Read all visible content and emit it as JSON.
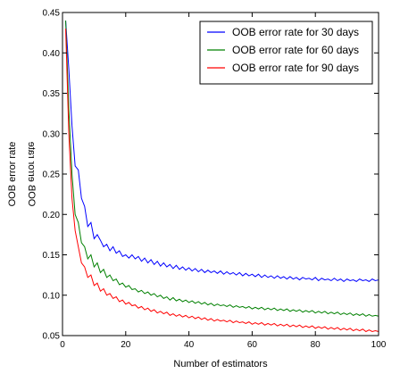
{
  "chart_data": {
    "type": "line",
    "xlabel": "Number of estimators",
    "ylabel": "OOB error rate",
    "xlim": [
      0,
      100
    ],
    "ylim": [
      0.05,
      0.45
    ],
    "xticks": [
      0,
      20,
      40,
      60,
      80,
      100
    ],
    "yticks": [
      0.05,
      0.1,
      0.15,
      0.2,
      0.25,
      0.3,
      0.35,
      0.4,
      0.45
    ],
    "legend_position": "top-right",
    "grid": false,
    "series": [
      {
        "name": "OOB error rate for 30 days",
        "color": "#0000ff",
        "x": [
          1,
          2,
          3,
          4,
          5,
          6,
          7,
          8,
          9,
          10,
          11,
          12,
          13,
          14,
          15,
          16,
          17,
          18,
          19,
          20,
          21,
          22,
          23,
          24,
          25,
          26,
          27,
          28,
          29,
          30,
          31,
          32,
          33,
          34,
          35,
          36,
          37,
          38,
          39,
          40,
          41,
          42,
          43,
          44,
          45,
          46,
          47,
          48,
          49,
          50,
          51,
          52,
          53,
          54,
          55,
          56,
          57,
          58,
          59,
          60,
          61,
          62,
          63,
          64,
          65,
          66,
          67,
          68,
          69,
          70,
          71,
          72,
          73,
          74,
          75,
          76,
          77,
          78,
          79,
          80,
          81,
          82,
          83,
          84,
          85,
          86,
          87,
          88,
          89,
          90,
          91,
          92,
          93,
          94,
          95,
          96,
          97,
          98,
          99,
          100
        ],
        "y": [
          0.44,
          0.38,
          0.31,
          0.26,
          0.255,
          0.22,
          0.21,
          0.185,
          0.19,
          0.17,
          0.175,
          0.168,
          0.16,
          0.163,
          0.155,
          0.16,
          0.152,
          0.155,
          0.148,
          0.15,
          0.146,
          0.15,
          0.145,
          0.148,
          0.142,
          0.146,
          0.14,
          0.144,
          0.138,
          0.142,
          0.136,
          0.14,
          0.135,
          0.138,
          0.133,
          0.137,
          0.132,
          0.135,
          0.131,
          0.134,
          0.13,
          0.133,
          0.129,
          0.132,
          0.128,
          0.131,
          0.128,
          0.13,
          0.127,
          0.13,
          0.126,
          0.129,
          0.126,
          0.128,
          0.125,
          0.128,
          0.124,
          0.127,
          0.124,
          0.126,
          0.123,
          0.126,
          0.122,
          0.125,
          0.122,
          0.124,
          0.121,
          0.124,
          0.121,
          0.123,
          0.12,
          0.123,
          0.12,
          0.122,
          0.119,
          0.122,
          0.12,
          0.121,
          0.119,
          0.122,
          0.118,
          0.121,
          0.119,
          0.12,
          0.118,
          0.121,
          0.118,
          0.12,
          0.117,
          0.12,
          0.118,
          0.119,
          0.117,
          0.12,
          0.118,
          0.119,
          0.117,
          0.12,
          0.118,
          0.119
        ]
      },
      {
        "name": "OOB error rate for 60 days",
        "color": "#008000",
        "x": [
          1,
          2,
          3,
          4,
          5,
          6,
          7,
          8,
          9,
          10,
          11,
          12,
          13,
          14,
          15,
          16,
          17,
          18,
          19,
          20,
          21,
          22,
          23,
          24,
          25,
          26,
          27,
          28,
          29,
          30,
          31,
          32,
          33,
          34,
          35,
          36,
          37,
          38,
          39,
          40,
          41,
          42,
          43,
          44,
          45,
          46,
          47,
          48,
          49,
          50,
          51,
          52,
          53,
          54,
          55,
          56,
          57,
          58,
          59,
          60,
          61,
          62,
          63,
          64,
          65,
          66,
          67,
          68,
          69,
          70,
          71,
          72,
          73,
          74,
          75,
          76,
          77,
          78,
          79,
          80,
          81,
          82,
          83,
          84,
          85,
          86,
          87,
          88,
          89,
          90,
          91,
          92,
          93,
          94,
          95,
          96,
          97,
          98,
          99,
          100
        ],
        "y": [
          0.44,
          0.33,
          0.25,
          0.2,
          0.19,
          0.165,
          0.16,
          0.145,
          0.15,
          0.135,
          0.14,
          0.128,
          0.132,
          0.122,
          0.125,
          0.118,
          0.12,
          0.113,
          0.115,
          0.11,
          0.112,
          0.107,
          0.108,
          0.104,
          0.106,
          0.102,
          0.104,
          0.1,
          0.102,
          0.098,
          0.1,
          0.096,
          0.098,
          0.094,
          0.097,
          0.093,
          0.095,
          0.092,
          0.094,
          0.091,
          0.093,
          0.09,
          0.092,
          0.089,
          0.091,
          0.088,
          0.09,
          0.087,
          0.089,
          0.087,
          0.088,
          0.086,
          0.088,
          0.085,
          0.087,
          0.085,
          0.086,
          0.084,
          0.086,
          0.083,
          0.085,
          0.083,
          0.085,
          0.082,
          0.084,
          0.082,
          0.084,
          0.081,
          0.083,
          0.081,
          0.083,
          0.08,
          0.082,
          0.08,
          0.082,
          0.079,
          0.081,
          0.079,
          0.081,
          0.078,
          0.08,
          0.078,
          0.08,
          0.077,
          0.079,
          0.077,
          0.079,
          0.076,
          0.078,
          0.076,
          0.078,
          0.075,
          0.077,
          0.075,
          0.077,
          0.074,
          0.076,
          0.074,
          0.075,
          0.074
        ]
      },
      {
        "name": "OOB error rate for 90 days",
        "color": "#ff0000",
        "x": [
          1,
          2,
          3,
          4,
          5,
          6,
          7,
          8,
          9,
          10,
          11,
          12,
          13,
          14,
          15,
          16,
          17,
          18,
          19,
          20,
          21,
          22,
          23,
          24,
          25,
          26,
          27,
          28,
          29,
          30,
          31,
          32,
          33,
          34,
          35,
          36,
          37,
          38,
          39,
          40,
          41,
          42,
          43,
          44,
          45,
          46,
          47,
          48,
          49,
          50,
          51,
          52,
          53,
          54,
          55,
          56,
          57,
          58,
          59,
          60,
          61,
          62,
          63,
          64,
          65,
          66,
          67,
          68,
          69,
          70,
          71,
          72,
          73,
          74,
          75,
          76,
          77,
          78,
          79,
          80,
          81,
          82,
          83,
          84,
          85,
          86,
          87,
          88,
          89,
          90,
          91,
          92,
          93,
          94,
          95,
          96,
          97,
          98,
          99,
          100
        ],
        "y": [
          0.43,
          0.3,
          0.22,
          0.18,
          0.16,
          0.14,
          0.135,
          0.122,
          0.125,
          0.112,
          0.115,
          0.105,
          0.108,
          0.1,
          0.102,
          0.096,
          0.098,
          0.092,
          0.094,
          0.089,
          0.091,
          0.087,
          0.088,
          0.084,
          0.086,
          0.082,
          0.084,
          0.08,
          0.082,
          0.078,
          0.08,
          0.077,
          0.079,
          0.075,
          0.077,
          0.074,
          0.076,
          0.073,
          0.075,
          0.072,
          0.074,
          0.071,
          0.073,
          0.07,
          0.072,
          0.069,
          0.071,
          0.068,
          0.07,
          0.068,
          0.069,
          0.067,
          0.069,
          0.066,
          0.068,
          0.066,
          0.067,
          0.065,
          0.067,
          0.064,
          0.066,
          0.064,
          0.066,
          0.063,
          0.065,
          0.063,
          0.065,
          0.062,
          0.064,
          0.062,
          0.064,
          0.061,
          0.063,
          0.061,
          0.063,
          0.06,
          0.062,
          0.06,
          0.062,
          0.059,
          0.061,
          0.059,
          0.061,
          0.058,
          0.06,
          0.058,
          0.06,
          0.057,
          0.059,
          0.057,
          0.059,
          0.056,
          0.058,
          0.056,
          0.058,
          0.055,
          0.057,
          0.055,
          0.056,
          0.055
        ]
      }
    ]
  }
}
